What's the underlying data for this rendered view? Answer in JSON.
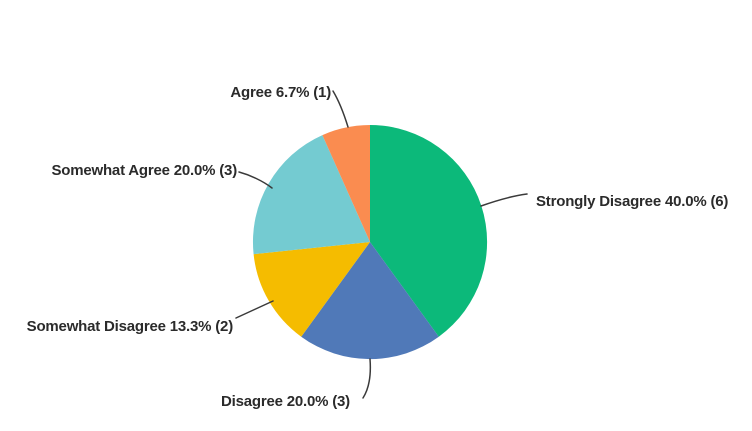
{
  "chart_data": {
    "type": "pie",
    "title": "",
    "total": 15,
    "start_angle_deg": 0,
    "direction": "clockwise",
    "legend_position": "none",
    "labels": "outside-with-leader-lines",
    "slices": [
      {
        "label": "Strongly Disagree",
        "percent": 40.0,
        "count": 6,
        "color": "#0cb97a",
        "display": "Strongly Disagree 40.0% (6)"
      },
      {
        "label": "Disagree",
        "percent": 20.0,
        "count": 3,
        "color": "#5079b8",
        "display": "Disagree 20.0% (3)"
      },
      {
        "label": "Somewhat Disagree",
        "percent": 13.3,
        "count": 2,
        "color": "#f5bc00",
        "display": "Somewhat Disagree 13.3% (2)"
      },
      {
        "label": "Somewhat Agree",
        "percent": 20.0,
        "count": 3,
        "color": "#74cbd1",
        "display": "Somewhat Agree 20.0% (3)"
      },
      {
        "label": "Agree",
        "percent": 6.7,
        "count": 1,
        "color": "#fa8c50",
        "display": "Agree 6.7% (1)"
      }
    ]
  }
}
